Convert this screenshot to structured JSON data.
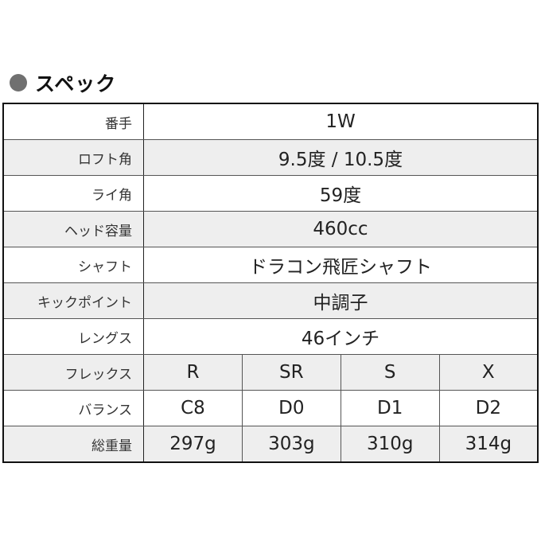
{
  "title": {
    "icon": "circle-bullet-icon",
    "text": "スペック"
  },
  "colors": {
    "bullet": "#707070",
    "row_alt": "#eeeeee",
    "border": "#111111"
  },
  "rows": [
    {
      "label": "番手",
      "value": "1W"
    },
    {
      "label": "ロフト角",
      "value": "9.5度 / 10.5度"
    },
    {
      "label": "ライ角",
      "value": "59度"
    },
    {
      "label": "ヘッド容量",
      "value": "460cc"
    },
    {
      "label": "シャフト",
      "value": "ドラコン飛匠シャフト"
    },
    {
      "label": "キックポイント",
      "value": "中調子"
    },
    {
      "label": "レングス",
      "value": "46インチ"
    }
  ],
  "flex_rows": [
    {
      "label": "フレックス",
      "values": [
        "R",
        "SR",
        "S",
        "X"
      ]
    },
    {
      "label": "バランス",
      "values": [
        "C8",
        "D0",
        "D1",
        "D2"
      ]
    },
    {
      "label": "総重量",
      "values": [
        "297g",
        "303g",
        "310g",
        "314g"
      ]
    }
  ]
}
